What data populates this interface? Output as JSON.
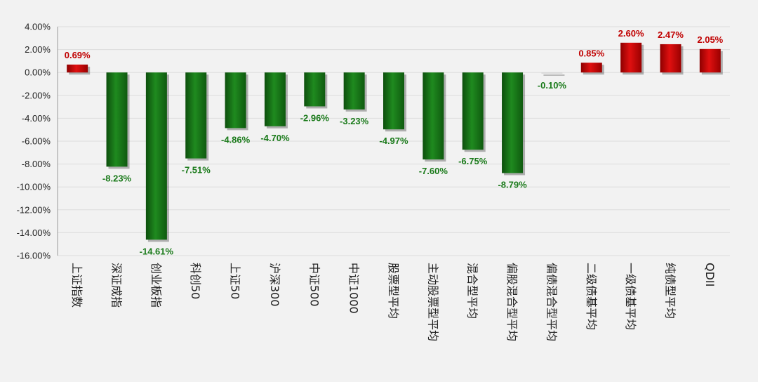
{
  "chart_data": {
    "type": "bar",
    "title": "",
    "xlabel": "",
    "ylabel": "",
    "ylim": [
      -16,
      4
    ],
    "ytick_step": 2,
    "ytick_labels": [
      "4.00%",
      "2.00%",
      "0.00%",
      "-2.00%",
      "-4.00%",
      "-6.00%",
      "-8.00%",
      "-10.00%",
      "-12.00%",
      "-14.00%",
      "-16.00%"
    ],
    "grid": true,
    "legend": "none",
    "positive_color": "#cc0000",
    "negative_color": "#1a7a1a",
    "categories": [
      "上证指数",
      "深证成指",
      "创业板指",
      "科创50",
      "上证50",
      "沪深300",
      "中证500",
      "中证1000",
      "股票型平均",
      "主动股票型平均",
      "混合型平均",
      "偏股混合型平均",
      "偏债混合型平均",
      "二级债基平均",
      "一级债基平均",
      "纯债型平均",
      "QDII"
    ],
    "values": [
      0.69,
      -8.23,
      -14.61,
      -7.51,
      -4.86,
      -4.7,
      -2.96,
      -3.23,
      -4.97,
      -7.6,
      -6.75,
      -8.79,
      -0.1,
      0.85,
      2.6,
      2.47,
      2.05
    ],
    "data_labels": [
      "0.69%",
      "-8.23%",
      "-14.61%",
      "-7.51%",
      "-4.86%",
      "-4.70%",
      "-2.96%",
      "-3.23%",
      "-4.97%",
      "-7.60%",
      "-6.75%",
      "-8.79%",
      "-0.10%",
      "0.85%",
      "2.60%",
      "2.47%",
      "2.05%"
    ]
  }
}
